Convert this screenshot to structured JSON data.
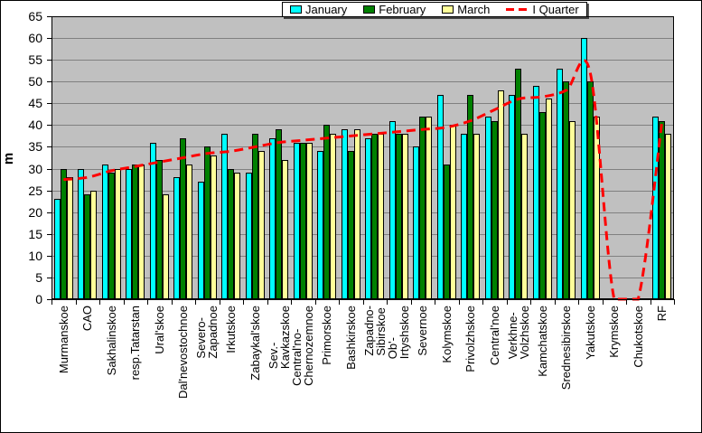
{
  "legend": {
    "position": "top-center",
    "items": [
      "January",
      "February",
      "March",
      "I Quarter"
    ]
  },
  "y_axis": {
    "title": "m",
    "min": 0,
    "max": 65,
    "step": 5
  },
  "chart_data": {
    "type": "bar",
    "title": "",
    "xlabel": "",
    "ylabel": "m",
    "ylim": [
      0,
      65
    ],
    "grid": true,
    "plot_bg": "#C0C0C0",
    "gridline_color": "#808080",
    "legend_position": "top-center",
    "categories": [
      "Murmanskoe",
      "CAO",
      "Sakhalinskoe",
      "resp.Tatarstan",
      "Ural'skoe",
      "Dal'nevostochnoe",
      "Severo-\nZapadnoe",
      "Irkutskoe",
      "Zabaykal'skoe",
      "Sev.-\nKavkazskoe",
      "Central'no-\nChernozemnoe",
      "Primorskoe",
      "Bashkirskoe",
      "Zapadno-\nSibirskoe",
      "Ob'-\nIrtyshskoe",
      "Severnoe",
      "Kolymskoe",
      "Privolzhskoe",
      "Central'noe",
      "Verkhne-\nVolzhskoe",
      "Kamchatskoe",
      "Srednesibirskoe",
      "Yakutskoe",
      "Krymskoe",
      "Chukotskoe",
      "RF"
    ],
    "series": [
      {
        "name": "January",
        "color": "#00FFFF",
        "values": [
          23,
          30,
          31,
          30,
          36,
          28,
          27,
          38,
          29,
          37,
          36,
          34,
          39,
          37,
          41,
          35,
          47,
          38,
          42,
          47,
          49,
          53,
          60,
          null,
          null,
          42
        ]
      },
      {
        "name": "February",
        "color": "#008000",
        "values": [
          30,
          24,
          29,
          31,
          32,
          37,
          35,
          30,
          38,
          39,
          36,
          40,
          34,
          38,
          38,
          42,
          31,
          47,
          41,
          53,
          43,
          50,
          50,
          null,
          null,
          41
        ]
      },
      {
        "name": "March",
        "color": "#FFFF99",
        "values": [
          28,
          25,
          30,
          31,
          24,
          31,
          33,
          29,
          34,
          32,
          36,
          38,
          39,
          38,
          38,
          42,
          40,
          38,
          48,
          38,
          46,
          41,
          42,
          null,
          null,
          38
        ]
      }
    ],
    "line_series": {
      "name": "I Quarter",
      "color": "#FF0000",
      "style": "dashed",
      "values": [
        27.5,
        28,
        29.5,
        30.5,
        31.5,
        32.5,
        33.5,
        34,
        35,
        36,
        36.5,
        37,
        37.5,
        38,
        38.5,
        39,
        39.5,
        41,
        43.5,
        46,
        46.5,
        48,
        52,
        0,
        0,
        41
      ]
    }
  }
}
